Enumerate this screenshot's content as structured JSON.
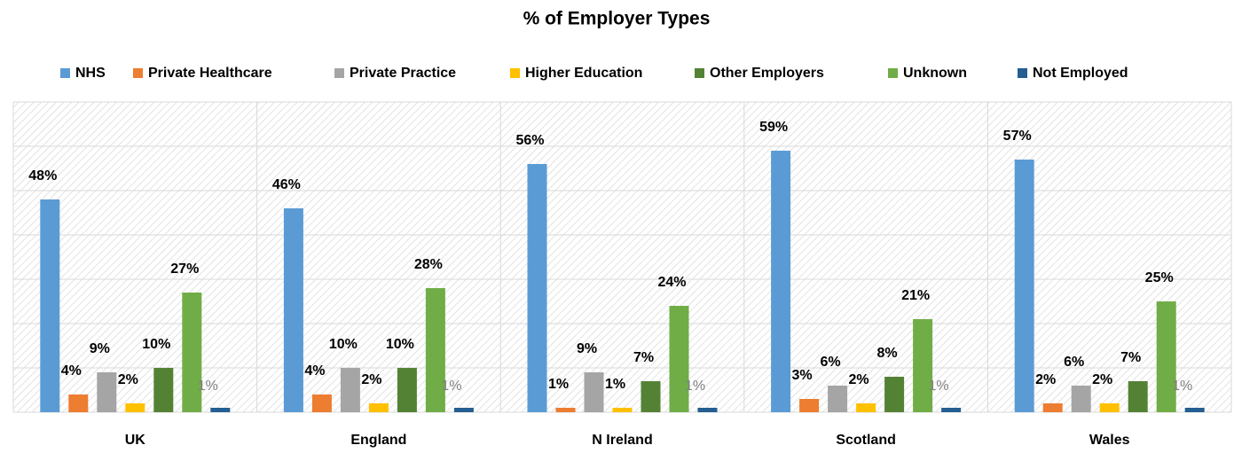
{
  "chart_data": {
    "type": "bar",
    "title": "% of Employer Types",
    "categories": [
      "UK",
      "England",
      "N Ireland",
      "Scotland",
      "Wales"
    ],
    "series": [
      {
        "name": "NHS",
        "color": "#5b9bd5",
        "values": [
          48,
          46,
          56,
          59,
          57
        ],
        "value_labels": [
          "48%",
          "46%",
          "56%",
          "59%",
          "57%"
        ]
      },
      {
        "name": "Private Healthcare",
        "color": "#ed7d31",
        "values": [
          4,
          4,
          1,
          3,
          2
        ],
        "value_labels": [
          "4%",
          "4%",
          "1%",
          "3%",
          "2%"
        ]
      },
      {
        "name": "Private Practice",
        "color": "#a5a5a5",
        "values": [
          9,
          10,
          9,
          6,
          6
        ],
        "value_labels": [
          "9%",
          "10%",
          "9%",
          "6%",
          "6%"
        ]
      },
      {
        "name": "Higher Education",
        "color": "#ffc000",
        "values": [
          2,
          2,
          1,
          2,
          2
        ],
        "value_labels": [
          "2%",
          "2%",
          "1%",
          "2%",
          "2%"
        ]
      },
      {
        "name": "Other Employers",
        "color": "#548235",
        "values": [
          10,
          10,
          7,
          8,
          7
        ],
        "value_labels": [
          "10%",
          "10%",
          "7%",
          "8%",
          "7%"
        ]
      },
      {
        "name": "Unknown",
        "color": "#70ad47",
        "values": [
          27,
          28,
          24,
          21,
          25
        ],
        "value_labels": [
          "27%",
          "28%",
          "24%",
          "21%",
          "25%"
        ]
      },
      {
        "name": "Not Employed",
        "color": "#255e91",
        "values": [
          1,
          1,
          1,
          1,
          1
        ],
        "value_labels": [
          "1%",
          "1%",
          "1%",
          "1%",
          "1%"
        ]
      }
    ],
    "ylim": [
      0,
      70
    ],
    "yticks": [
      0,
      10,
      20,
      30,
      40,
      50,
      60,
      70
    ],
    "grid": true,
    "legend": "top"
  }
}
